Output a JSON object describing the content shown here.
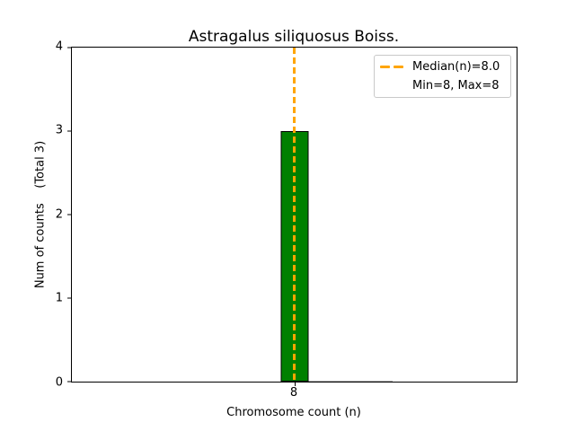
{
  "chart_data": {
    "type": "bar",
    "title": "Astragalus siliquosus Boiss.",
    "xlabel": "Chromosome count (n)",
    "ylabel": "Num of counts    (Total 3)",
    "categories": [
      "8"
    ],
    "values": [
      3
    ],
    "total_counts": 3,
    "ylim": [
      0,
      4
    ],
    "yticks": [
      "0",
      "1",
      "2",
      "3",
      "4"
    ],
    "xticks": [
      "8"
    ],
    "bar_color": "#008000",
    "bar_edge_color": "#000000",
    "median_line": {
      "x": "8",
      "color": "#FFA500",
      "style": "dashed"
    },
    "legend": {
      "position": "upper right",
      "entries": [
        {
          "label": "Median(n)=8.0",
          "handle": "dashed-line",
          "color": "#FFA500"
        },
        {
          "label": "Min=8, Max=8",
          "handle": "none"
        }
      ]
    }
  }
}
